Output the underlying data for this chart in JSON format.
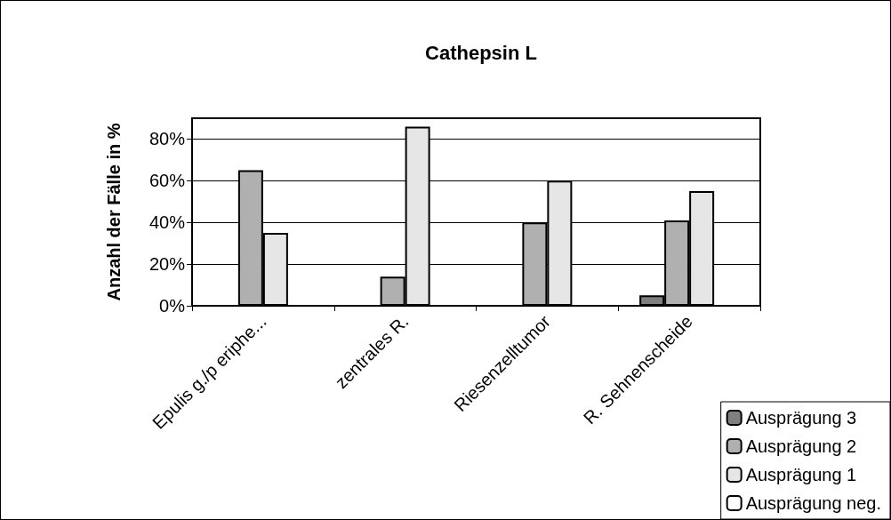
{
  "chart_data": {
    "type": "bar",
    "title": "Cathepsin L",
    "ylabel": "Anzahl der Fälle in %",
    "categories": [
      "Epulis g./p eriphe...",
      "zentrales R.",
      "Riesenzelltumor",
      "R. Sehnenscheide"
    ],
    "series": [
      {
        "name": "Ausprägung 3",
        "color": "#7f7f7f",
        "values": [
          null,
          null,
          null,
          5
        ]
      },
      {
        "name": "Ausprägung 2",
        "color": "#b0b0b0",
        "values": [
          65,
          14,
          40,
          41
        ]
      },
      {
        "name": "Ausprägung 1",
        "color": "#e6e6e6",
        "values": [
          35,
          86,
          60,
          55
        ]
      },
      {
        "name": "Ausprägung neg.",
        "color": "#ffffff",
        "values": [
          null,
          null,
          null,
          null
        ]
      }
    ],
    "ylim": [
      0,
      90
    ],
    "yticks": [
      {
        "value": 0,
        "label": "0%"
      },
      {
        "value": 20,
        "label": "20%"
      },
      {
        "value": 40,
        "label": "40%"
      },
      {
        "value": 60,
        "label": "60%"
      },
      {
        "value": 80,
        "label": "80%"
      }
    ],
    "grid": "y",
    "legend": "bottom right"
  }
}
